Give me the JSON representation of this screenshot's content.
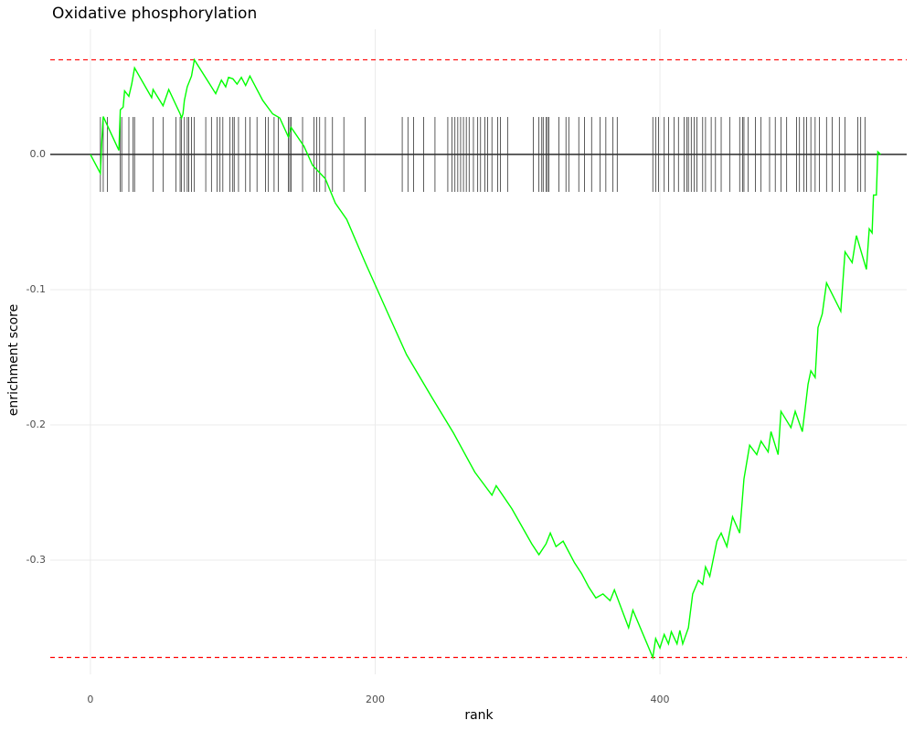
{
  "chart_data": {
    "type": "line",
    "title": "Oxidative phosphorylation",
    "xlabel": "rank",
    "ylabel": "enrichment score",
    "xlim": [
      -28.2,
      573.3
    ],
    "ylim": [
      -0.3845,
      0.0926
    ],
    "xticks": [
      0,
      200,
      400
    ],
    "yticks": [
      {
        "value": 0,
        "label": "0.0"
      },
      -0.1,
      -0.2,
      -0.3
    ],
    "grid": true,
    "series": [
      {
        "color": "#00ff00",
        "x": [
          0,
          7,
          8,
          9,
          20,
          21,
          23,
          24,
          27,
          29,
          31,
          43,
          44,
          51,
          55,
          63,
          64,
          65,
          66,
          68,
          71,
          73,
          82,
          88,
          90,
          92,
          95,
          97,
          100,
          103,
          106,
          109,
          112,
          121,
          128,
          133,
          139,
          141,
          150,
          156,
          165,
          172,
          180,
          193,
          210,
          222,
          240,
          255,
          270,
          282,
          285,
          296,
          310,
          315,
          320,
          323,
          327,
          332,
          340,
          345,
          350,
          355,
          360,
          365,
          368,
          378,
          381,
          395,
          397,
          400,
          403,
          406,
          408,
          412,
          414,
          416,
          420,
          423,
          427,
          430,
          432,
          435,
          440,
          443,
          447,
          451,
          456,
          459,
          463,
          468,
          471,
          476,
          478,
          483,
          485,
          492,
          495,
          500,
          502,
          504,
          506,
          509,
          511,
          514,
          517,
          527,
          530,
          535,
          538,
          545,
          547,
          549,
          550,
          552,
          553,
          555
        ],
        "values": [
          0,
          -0.014,
          0.01,
          0.028,
          0.003,
          0.033,
          0.035,
          0.047,
          0.043,
          0.052,
          0.064,
          0.042,
          0.048,
          0.036,
          0.048,
          0.03,
          0.027,
          0.03,
          0.04,
          0.05,
          0.058,
          0.07,
          0.055,
          0.045,
          0.05,
          0.055,
          0.05,
          0.057,
          0.056,
          0.052,
          0.057,
          0.051,
          0.058,
          0.04,
          0.03,
          0.027,
          0.013,
          0.02,
          0.006,
          -0.008,
          -0.018,
          -0.036,
          -0.048,
          -0.08,
          -0.12,
          -0.148,
          -0.18,
          -0.206,
          -0.235,
          -0.252,
          -0.245,
          -0.262,
          -0.288,
          -0.296,
          -0.288,
          -0.28,
          -0.29,
          -0.286,
          -0.302,
          -0.31,
          -0.32,
          -0.328,
          -0.325,
          -0.33,
          -0.322,
          -0.35,
          -0.337,
          -0.372,
          -0.358,
          -0.365,
          -0.355,
          -0.362,
          -0.353,
          -0.362,
          -0.352,
          -0.362,
          -0.35,
          -0.325,
          -0.315,
          -0.318,
          -0.305,
          -0.312,
          -0.286,
          -0.28,
          -0.29,
          -0.268,
          -0.28,
          -0.24,
          -0.215,
          -0.222,
          -0.212,
          -0.22,
          -0.205,
          -0.222,
          -0.19,
          -0.202,
          -0.19,
          -0.205,
          -0.188,
          -0.17,
          -0.16,
          -0.165,
          -0.128,
          -0.118,
          -0.095,
          -0.116,
          -0.072,
          -0.08,
          -0.06,
          -0.085,
          -0.055,
          -0.058,
          -0.03,
          -0.03,
          0.002,
          0
        ]
      }
    ],
    "rug": {
      "color": "#333333",
      "x": [
        7,
        9,
        12,
        21,
        22,
        27,
        30,
        31,
        44,
        51,
        60,
        63,
        64,
        66,
        68,
        69,
        71,
        73,
        81,
        85,
        89,
        91,
        93,
        98,
        100,
        101,
        104,
        109,
        112,
        117,
        123,
        125,
        129,
        132,
        139,
        140,
        141,
        149,
        157,
        159,
        161,
        165,
        170,
        178,
        193,
        219,
        223,
        227,
        234,
        242,
        251,
        254,
        256,
        258,
        260,
        262,
        264,
        266,
        269,
        272,
        274,
        277,
        279,
        282,
        286,
        288,
        293,
        311,
        315,
        317,
        318,
        320,
        321,
        322,
        329,
        334,
        336,
        343,
        347,
        352,
        358,
        362,
        367,
        370,
        395,
        397,
        399,
        403,
        406,
        410,
        413,
        417,
        419,
        420,
        422,
        424,
        426,
        430,
        432,
        436,
        439,
        443,
        449,
        456,
        458,
        459,
        462,
        467,
        471,
        477,
        481,
        485,
        489,
        496,
        498,
        501,
        503,
        506,
        509,
        512,
        517,
        521,
        526,
        530,
        539,
        541,
        544
      ]
    },
    "hlines": [
      {
        "value": 0.07,
        "color": "#ff0000",
        "dashed": true
      },
      {
        "value": -0.372,
        "color": "#ff0000",
        "dashed": true
      },
      {
        "value": 0,
        "color": "#000000",
        "dashed": false
      }
    ]
  }
}
